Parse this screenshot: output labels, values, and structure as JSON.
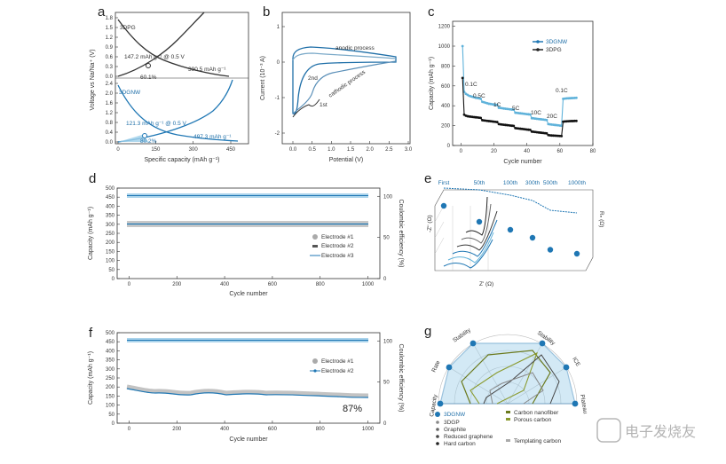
{
  "colors": {
    "blue": "#1f77b4",
    "lightblue": "#5fb2da",
    "dark": "#3a3a3a",
    "grey": "#9e9e9e",
    "olive": "#6b7a1e"
  },
  "panels": {
    "a": "a",
    "b": "b",
    "c": "c",
    "d": "d",
    "e": "e",
    "f": "f",
    "g": "g"
  },
  "watermark": "电子发烧友",
  "chart_data": [
    {
      "id": "a",
      "type": "line",
      "xlabel": "Specific capacity (mAh g⁻¹)",
      "ylabel": "Voltage vs Na/Na⁺ (V)",
      "xticks": [
        "0",
        "150",
        "300",
        "450"
      ],
      "xlim": [
        0,
        500
      ],
      "yticks_top": [
        "0.0",
        "0.3",
        "0.6",
        "0.9",
        "1.2",
        "1.5",
        "1.8"
      ],
      "yticks_bottom": [
        "0.0",
        "0.4",
        "0.8",
        "1.2",
        "1.6",
        "2.0",
        "2.4"
      ],
      "labels": {
        "top_series": "3DPG",
        "bottom_series": "3DGNW",
        "top_note1": "147.2 mAh g⁻¹ @ 0.5 V",
        "top_note2": "390.5 mAh g⁻¹",
        "top_pct": "60.1%",
        "bot_note1": "121.3 mAh g⁻¹ @ 0.5 V",
        "bot_note2": "497.3 mAh g⁻¹",
        "bot_pct": "80.2%"
      }
    },
    {
      "id": "b",
      "type": "line",
      "xlabel": "Potential (V)",
      "ylabel": "Current (10⁻³ A)",
      "xticks": [
        "0.0",
        "0.5",
        "1.0",
        "1.5",
        "2.0",
        "2.5",
        "3.0"
      ],
      "xlim": [
        -0.25,
        3.0
      ],
      "yticks": [
        "1",
        "0",
        "-1",
        "-2"
      ],
      "ylim": [
        -2.1,
        1.2
      ],
      "labels": {
        "anodic": "anodic process",
        "cathodic": "cathodic process",
        "p1": "2nd",
        "p2": "1st"
      }
    },
    {
      "id": "c",
      "type": "line",
      "xlabel": "Cycle number",
      "ylabel": "Capacity (mAh g⁻¹)",
      "xticks": [
        "0",
        "20",
        "40",
        "60",
        "80"
      ],
      "xlim": [
        -5,
        80
      ],
      "yticks": [
        "0",
        "200",
        "400",
        "600",
        "800",
        "1000",
        "1200"
      ],
      "ylim": [
        0,
        1250
      ],
      "legend": [
        "3DGNW",
        "3DPG"
      ],
      "rates": [
        "0.1C",
        "0.5C",
        "1C",
        "5C",
        "10C",
        "20C",
        "0.1C"
      ],
      "series": [
        {
          "name": "3DGNW",
          "values": [
            1000,
            540,
            520,
            510,
            500,
            495,
            490,
            485,
            480,
            478,
            475,
            470,
            440,
            435,
            430,
            425,
            420,
            418,
            415,
            412,
            410,
            408,
            380,
            378,
            375,
            372,
            370,
            368,
            366,
            364,
            362,
            360,
            330,
            328,
            326,
            324,
            322,
            320,
            318,
            316,
            314,
            312,
            275,
            273,
            271,
            269,
            267,
            265,
            263,
            261,
            259,
            257,
            215,
            213,
            211,
            209,
            207,
            205,
            203,
            201,
            199,
            470,
            472,
            474,
            475,
            476,
            477,
            478,
            479,
            480
          ]
        },
        {
          "name": "3DPG",
          "values": [
            680,
            310,
            300,
            295,
            292,
            290,
            288,
            286,
            284,
            282,
            280,
            278,
            255,
            252,
            250,
            248,
            246,
            244,
            242,
            240,
            238,
            236,
            215,
            213,
            211,
            209,
            207,
            205,
            203,
            201,
            199,
            197,
            175,
            173,
            171,
            169,
            167,
            165,
            163,
            161,
            159,
            157,
            140,
            138,
            136,
            134,
            132,
            130,
            128,
            126,
            124,
            122,
            105,
            103,
            101,
            100,
            99,
            98,
            97,
            96,
            95,
            240,
            242,
            243,
            244,
            245,
            246,
            246,
            247,
            247
          ]
        }
      ]
    },
    {
      "id": "d",
      "type": "line",
      "xlabel": "Cycle number",
      "ylabel": "Capacity (mAh g⁻¹)",
      "y2label": "Coulombic efficiency (%)",
      "xticks": [
        "0",
        "200",
        "400",
        "600",
        "800",
        "1000"
      ],
      "xlim": [
        -50,
        1050
      ],
      "yticks": [
        "0",
        "50",
        "100",
        "150",
        "200",
        "250",
        "300",
        "350",
        "400",
        "450",
        "500"
      ],
      "ylim": [
        0,
        500
      ],
      "y2ticks": [
        "0",
        "50",
        "100"
      ],
      "legend": [
        "Electrode #1",
        "Electrode #2",
        "Electrode #3"
      ],
      "capacity_level": 290,
      "efficiency_level": 100
    },
    {
      "id": "e",
      "type": "scatter",
      "xlabel": "Z' (Ω)",
      "ylabel": "-Z'' (Ω)",
      "zlabel": "Rₙ (Ω)",
      "cycles": [
        "First",
        "50th",
        "100th",
        "300th",
        "500th",
        "1000th"
      ],
      "rct": [
        200,
        180,
        170,
        160,
        145,
        140
      ]
    },
    {
      "id": "f",
      "type": "line",
      "xlabel": "Cycle number",
      "ylabel": "Capacity (mAh g⁻¹)",
      "y2label": "Coulombic efficiency (%)",
      "xticks": [
        "0",
        "200",
        "400",
        "600",
        "800",
        "1000"
      ],
      "xlim": [
        -50,
        1050
      ],
      "yticks": [
        "0",
        "50",
        "100",
        "150",
        "200",
        "250",
        "300",
        "350",
        "400",
        "450",
        "500"
      ],
      "ylim": [
        0,
        500
      ],
      "y2ticks": [
        "0",
        "50",
        "100"
      ],
      "legend": [
        "Electrode #1",
        "Electrode #2"
      ],
      "capacity_level": 170,
      "efficiency_level": 100,
      "retention": "87%"
    },
    {
      "id": "g",
      "type": "radar",
      "axes": [
        "Capacity",
        "Rate",
        "Stability",
        "Stability",
        "ICE",
        "Plateau"
      ],
      "legend": [
        "3DGNW",
        "3DGP",
        "Graphite",
        "Reduced graphene",
        "Hard carbon",
        "Carbon nanofiber",
        "Porous carbon",
        "Templating carbon"
      ]
    }
  ]
}
